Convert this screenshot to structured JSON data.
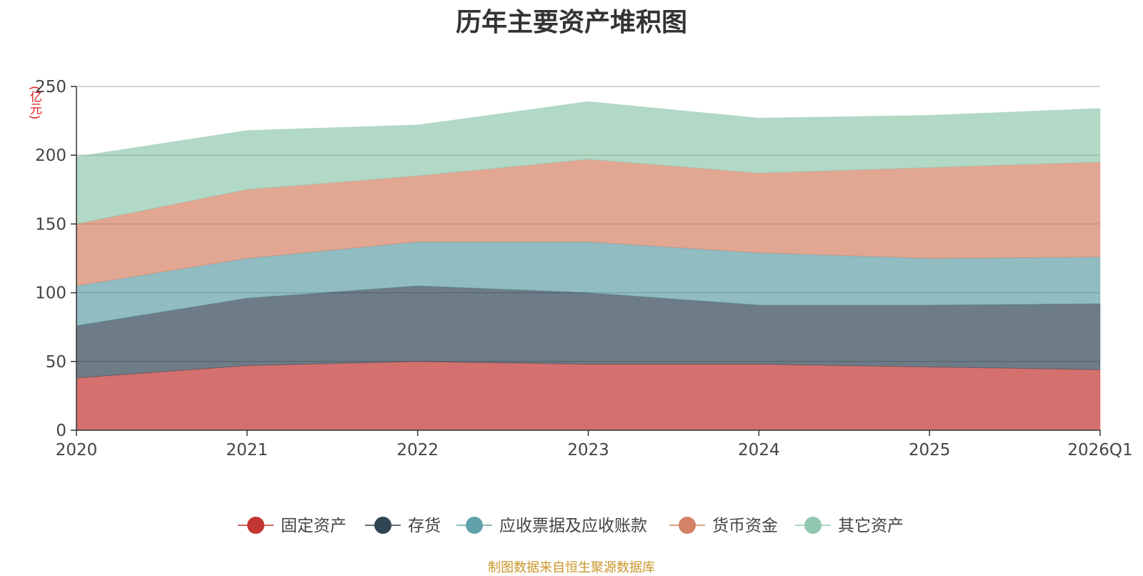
{
  "chart_data": {
    "type": "area",
    "stacked": true,
    "title": "历年主要资产堆积图",
    "y_unit": "(亿元)",
    "x": [
      "2020",
      "2021",
      "2022",
      "2023",
      "2024",
      "2025",
      "2026Q1"
    ],
    "ylim": [
      0,
      250
    ],
    "yticks": [
      0,
      50,
      100,
      150,
      200,
      250
    ],
    "grid": true,
    "legend_position": "bottom",
    "series": [
      {
        "name": "固定资产",
        "color": "#c23531",
        "values": [
          38,
          47,
          50,
          48,
          48,
          46,
          44
        ]
      },
      {
        "name": "存货",
        "color": "#2f4554",
        "values": [
          38,
          49,
          55,
          52,
          43,
          45,
          48
        ]
      },
      {
        "name": "应收票据及应收账款",
        "color": "#61a0a8",
        "values": [
          29,
          29,
          32,
          37,
          38,
          34,
          34
        ]
      },
      {
        "name": "货币资金",
        "color": "#d48265",
        "values": [
          45,
          50,
          48,
          60,
          58,
          66,
          69
        ]
      },
      {
        "name": "其它资产",
        "color": "#91c7ae",
        "values": [
          49,
          43,
          37,
          42,
          40,
          38,
          39
        ]
      }
    ]
  },
  "source_note": "制图数据来自恒生聚源数据库"
}
